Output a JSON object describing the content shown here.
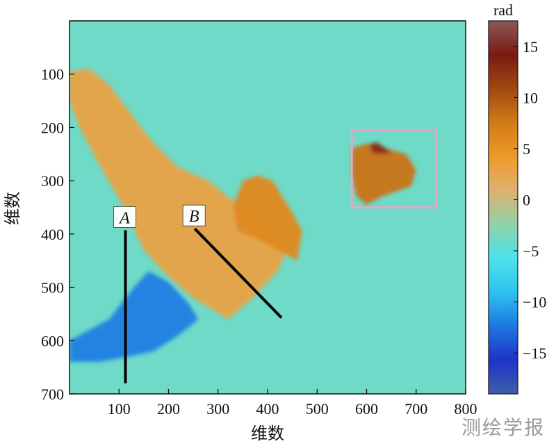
{
  "chart_data": {
    "type": "heatmap",
    "xlabel": "维数",
    "ylabel": "维数",
    "xlim": [
      0,
      800
    ],
    "ylim": [
      700,
      0
    ],
    "x_ticks": [
      100,
      200,
      300,
      400,
      500,
      600,
      700,
      800
    ],
    "y_ticks": [
      100,
      200,
      300,
      400,
      500,
      600,
      700
    ],
    "colorbar": {
      "unit": "rad",
      "range": [
        -19,
        17.5
      ],
      "ticks": [
        15,
        10,
        5,
        0,
        -5,
        -10,
        -15
      ],
      "colors": [
        "#3f5fa8",
        "#1f33c8",
        "#1d78e0",
        "#2ec3f0",
        "#4ce2ea",
        "#8fd2a8",
        "#e0b070",
        "#ee9a2a",
        "#d17a18",
        "#a04812",
        "#7a1a12",
        "#8a5a5a"
      ]
    },
    "background_value": -4,
    "regions": [
      {
        "name": "deformation-west",
        "value": 3,
        "polygon": [
          [
            0,
            95
          ],
          [
            40,
            90
          ],
          [
            80,
            120
          ],
          [
            120,
            170
          ],
          [
            170,
            230
          ],
          [
            220,
            275
          ],
          [
            280,
            300
          ],
          [
            320,
            330
          ],
          [
            370,
            360
          ],
          [
            410,
            390
          ],
          [
            440,
            430
          ],
          [
            420,
            470
          ],
          [
            370,
            520
          ],
          [
            320,
            560
          ],
          [
            250,
            520
          ],
          [
            200,
            480
          ],
          [
            150,
            430
          ],
          [
            110,
            350
          ],
          [
            60,
            270
          ],
          [
            20,
            200
          ],
          [
            0,
            150
          ]
        ]
      },
      {
        "name": "uplift-center",
        "value": 6,
        "polygon": [
          [
            350,
            300
          ],
          [
            380,
            290
          ],
          [
            410,
            300
          ],
          [
            430,
            330
          ],
          [
            450,
            360
          ],
          [
            470,
            395
          ],
          [
            460,
            450
          ],
          [
            420,
            430
          ],
          [
            380,
            410
          ],
          [
            340,
            395
          ],
          [
            330,
            350
          ]
        ]
      },
      {
        "name": "uplift-northeast",
        "value": 8,
        "polygon": [
          [
            570,
            240
          ],
          [
            600,
            230
          ],
          [
            640,
            240
          ],
          [
            680,
            250
          ],
          [
            700,
            280
          ],
          [
            690,
            310
          ],
          [
            660,
            320
          ],
          [
            630,
            330
          ],
          [
            600,
            345
          ],
          [
            580,
            330
          ],
          [
            570,
            290
          ]
        ]
      },
      {
        "name": "uplift-northeast-core",
        "value": 13,
        "polygon": [
          [
            605,
            232
          ],
          [
            620,
            228
          ],
          [
            640,
            240
          ],
          [
            650,
            248
          ],
          [
            630,
            250
          ],
          [
            612,
            248
          ]
        ]
      },
      {
        "name": "subsidence-southwest",
        "value": -12,
        "polygon": [
          [
            0,
            600
          ],
          [
            40,
            580
          ],
          [
            80,
            560
          ],
          [
            130,
            500
          ],
          [
            160,
            470
          ],
          [
            200,
            490
          ],
          [
            240,
            530
          ],
          [
            260,
            560
          ],
          [
            220,
            590
          ],
          [
            170,
            620
          ],
          [
            120,
            630
          ],
          [
            60,
            640
          ],
          [
            0,
            640
          ]
        ]
      }
    ],
    "box": {
      "x": [
        570,
        740
      ],
      "y": [
        205,
        350
      ],
      "color": "#e9a6c8"
    },
    "profiles": [
      {
        "label": "A",
        "start": [
          113,
          393
        ],
        "end": [
          113,
          680
        ]
      },
      {
        "label": "B",
        "start": [
          253,
          390
        ],
        "end": [
          428,
          557
        ]
      }
    ]
  },
  "watermark": "测绘学报"
}
